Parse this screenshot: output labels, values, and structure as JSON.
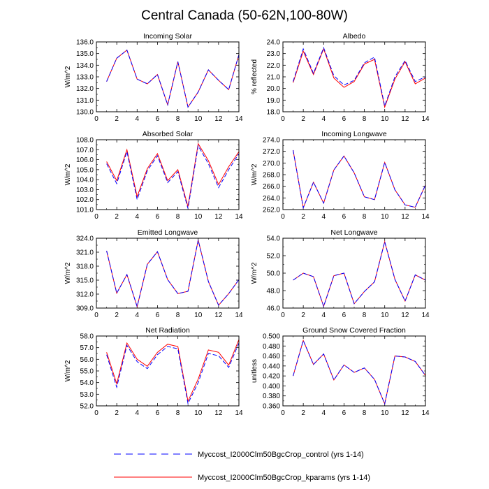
{
  "figure": {
    "title": "Central Canada (50-62N,100-80W)",
    "legend_position": "bottom-center"
  },
  "style": {
    "control_color": "#0000ff",
    "kparams_color": "#ff0000",
    "axis_color": "#000000"
  },
  "legend": [
    {
      "label": "Myccost_I2000Clm50BgcCrop_control (yrs 1-14)",
      "color": "#0000ff",
      "dash": "dashed"
    },
    {
      "label": "Myccost_I2000Clm50BgcCrop_kparams (yrs 1-14)",
      "color": "#ff0000",
      "dash": "solid"
    }
  ],
  "chart_data": [
    {
      "type": "line",
      "title": "Incoming Solar",
      "ylabel": "W/m^2",
      "x": [
        1,
        2,
        3,
        4,
        5,
        6,
        7,
        8,
        9,
        10,
        11,
        12,
        13,
        14
      ],
      "xlim": [
        0,
        14
      ],
      "xticks": [
        "0",
        "2",
        "4",
        "6",
        "8",
        "10",
        "12",
        "14"
      ],
      "ylim": [
        130.0,
        136.0
      ],
      "yticks": [
        "130.0",
        "131.0",
        "132.0",
        "133.0",
        "134.0",
        "135.0",
        "136.0"
      ],
      "series": [
        {
          "name": "Myccost_I2000Clm50BgcCrop_control (yrs 1-14)",
          "values": [
            132.6,
            134.6,
            135.3,
            132.8,
            132.4,
            133.2,
            130.6,
            134.3,
            130.4,
            131.7,
            133.6,
            132.7,
            131.9,
            134.9
          ]
        },
        {
          "name": "Myccost_I2000Clm50BgcCrop_kparams (yrs 1-14)",
          "values": [
            132.6,
            134.6,
            135.3,
            132.8,
            132.4,
            133.2,
            130.6,
            134.3,
            130.4,
            131.7,
            133.6,
            132.7,
            131.9,
            134.9
          ]
        }
      ]
    },
    {
      "type": "line",
      "title": "Albedo",
      "ylabel": "% reflected",
      "x": [
        1,
        2,
        3,
        4,
        5,
        6,
        7,
        8,
        9,
        10,
        11,
        12,
        13,
        14
      ],
      "xlim": [
        0,
        14
      ],
      "xticks": [
        "0",
        "2",
        "4",
        "6",
        "8",
        "10",
        "12",
        "14"
      ],
      "ylim": [
        18.0,
        24.0
      ],
      "yticks": [
        "18.0",
        "19.0",
        "20.0",
        "21.0",
        "22.0",
        "23.0",
        "24.0"
      ],
      "series": [
        {
          "name": "Myccost_I2000Clm50BgcCrop_control (yrs 1-14)",
          "values": [
            20.6,
            23.4,
            21.3,
            23.5,
            21.1,
            20.3,
            20.7,
            22.2,
            22.7,
            18.5,
            21.0,
            22.4,
            20.6,
            21.0
          ]
        },
        {
          "name": "Myccost_I2000Clm50BgcCrop_kparams (yrs 1-14)",
          "values": [
            20.5,
            23.2,
            21.2,
            23.4,
            20.9,
            20.1,
            20.6,
            22.1,
            22.5,
            18.4,
            20.8,
            22.3,
            20.4,
            20.9
          ]
        }
      ]
    },
    {
      "type": "line",
      "title": "Absorbed Solar",
      "ylabel": "W/m^2",
      "x": [
        1,
        2,
        3,
        4,
        5,
        6,
        7,
        8,
        9,
        10,
        11,
        12,
        13,
        14
      ],
      "xlim": [
        0,
        14
      ],
      "xticks": [
        "0",
        "2",
        "4",
        "6",
        "8",
        "10",
        "12",
        "14"
      ],
      "ylim": [
        101.0,
        108.0
      ],
      "yticks": [
        "101.0",
        "102.0",
        "103.0",
        "104.0",
        "105.0",
        "106.0",
        "107.0",
        "108.0"
      ],
      "series": [
        {
          "name": "Myccost_I2000Clm50BgcCrop_control (yrs 1-14)",
          "values": [
            105.6,
            103.6,
            106.8,
            102.0,
            104.9,
            106.4,
            103.7,
            104.8,
            101.1,
            107.4,
            105.6,
            103.2,
            105.0,
            106.6
          ]
        },
        {
          "name": "Myccost_I2000Clm50BgcCrop_kparams (yrs 1-14)",
          "values": [
            105.8,
            103.9,
            107.0,
            102.3,
            105.1,
            106.6,
            103.9,
            105.0,
            101.3,
            107.6,
            105.9,
            103.5,
            105.3,
            106.8
          ]
        }
      ]
    },
    {
      "type": "line",
      "title": "Incoming Longwave",
      "ylabel": "W/m^2",
      "x": [
        1,
        2,
        3,
        4,
        5,
        6,
        7,
        8,
        9,
        10,
        11,
        12,
        13,
        14
      ],
      "xlim": [
        0,
        14
      ],
      "xticks": [
        "0",
        "2",
        "4",
        "6",
        "8",
        "10",
        "12",
        "14"
      ],
      "ylim": [
        262.0,
        274.0
      ],
      "yticks": [
        "262.0",
        "264.0",
        "266.0",
        "268.0",
        "270.0",
        "272.0",
        "274.0"
      ],
      "series": [
        {
          "name": "Myccost_I2000Clm50BgcCrop_control (yrs 1-14)",
          "values": [
            272.2,
            262.3,
            266.7,
            263.1,
            268.8,
            271.2,
            268.3,
            264.2,
            263.7,
            270.1,
            265.4,
            262.8,
            262.4,
            266.2
          ]
        },
        {
          "name": "Myccost_I2000Clm50BgcCrop_kparams (yrs 1-14)",
          "values": [
            272.2,
            262.3,
            266.7,
            263.1,
            268.8,
            271.2,
            268.3,
            264.2,
            263.7,
            270.1,
            265.4,
            262.8,
            262.4,
            266.2
          ]
        }
      ]
    },
    {
      "type": "line",
      "title": "Emitted Longwave",
      "ylabel": "W/m^2",
      "x": [
        1,
        2,
        3,
        4,
        5,
        6,
        7,
        8,
        9,
        10,
        11,
        12,
        13,
        14
      ],
      "xlim": [
        0,
        14
      ],
      "xticks": [
        "0",
        "2",
        "4",
        "6",
        "8",
        "10",
        "12",
        "14"
      ],
      "ylim": [
        309.0,
        324.0
      ],
      "yticks": [
        "309.0",
        "312.0",
        "315.0",
        "318.0",
        "321.0",
        "324.0"
      ],
      "series": [
        {
          "name": "Myccost_I2000Clm50BgcCrop_control (yrs 1-14)",
          "values": [
            321.3,
            312.2,
            316.2,
            309.3,
            318.4,
            321.1,
            315.1,
            312.1,
            312.6,
            323.6,
            314.7,
            309.6,
            312.1,
            315.1
          ]
        },
        {
          "name": "Myccost_I2000Clm50BgcCrop_kparams (yrs 1-14)",
          "values": [
            321.3,
            312.2,
            316.2,
            309.3,
            318.4,
            321.1,
            315.1,
            312.1,
            312.6,
            323.6,
            314.7,
            309.6,
            312.1,
            315.1
          ]
        }
      ]
    },
    {
      "type": "line",
      "title": "Net Longwave",
      "ylabel": "W/m^2",
      "x": [
        1,
        2,
        3,
        4,
        5,
        6,
        7,
        8,
        9,
        10,
        11,
        12,
        13,
        14
      ],
      "xlim": [
        0,
        14
      ],
      "xticks": [
        "0",
        "2",
        "4",
        "6",
        "8",
        "10",
        "12",
        "14"
      ],
      "ylim": [
        46.0,
        54.0
      ],
      "yticks": [
        "46.0",
        "48.0",
        "50.0",
        "52.0",
        "54.0"
      ],
      "series": [
        {
          "name": "Myccost_I2000Clm50BgcCrop_control (yrs 1-14)",
          "values": [
            49.2,
            50.0,
            49.6,
            46.2,
            49.7,
            50.0,
            46.5,
            47.9,
            49.0,
            53.6,
            49.3,
            46.8,
            49.8,
            49.2
          ]
        },
        {
          "name": "Myccost_I2000Clm50BgcCrop_kparams (yrs 1-14)",
          "values": [
            49.2,
            50.0,
            49.6,
            46.2,
            49.7,
            50.0,
            46.5,
            47.9,
            49.0,
            53.6,
            49.3,
            46.8,
            49.8,
            49.2
          ]
        }
      ]
    },
    {
      "type": "line",
      "title": "Net Radiation",
      "ylabel": "W/m^2",
      "x": [
        1,
        2,
        3,
        4,
        5,
        6,
        7,
        8,
        9,
        10,
        11,
        12,
        13,
        14
      ],
      "xlim": [
        0,
        14
      ],
      "xticks": [
        "0",
        "2",
        "4",
        "6",
        "8",
        "10",
        "12",
        "14"
      ],
      "ylim": [
        52.0,
        58.0
      ],
      "yticks": [
        "52.0",
        "53.0",
        "54.0",
        "55.0",
        "56.0",
        "57.0",
        "58.0"
      ],
      "series": [
        {
          "name": "Myccost_I2000Clm50BgcCrop_control (yrs 1-14)",
          "values": [
            56.4,
            53.6,
            57.2,
            55.8,
            55.2,
            56.4,
            57.1,
            56.9,
            52.2,
            54.0,
            56.5,
            56.3,
            55.3,
            57.4
          ]
        },
        {
          "name": "Myccost_I2000Clm50BgcCrop_kparams (yrs 1-14)",
          "values": [
            56.6,
            53.9,
            57.4,
            56.0,
            55.4,
            56.6,
            57.3,
            57.1,
            52.4,
            54.3,
            56.8,
            56.6,
            55.5,
            57.7
          ]
        }
      ]
    },
    {
      "type": "line",
      "title": "Ground Snow Covered Fraction",
      "ylabel": "unitless",
      "x": [
        1,
        2,
        3,
        4,
        5,
        6,
        7,
        8,
        9,
        10,
        11,
        12,
        13,
        14
      ],
      "xlim": [
        0,
        14
      ],
      "xticks": [
        "0",
        "2",
        "4",
        "6",
        "8",
        "10",
        "12",
        "14"
      ],
      "ylim": [
        0.36,
        0.5
      ],
      "yticks": [
        "0.360",
        "0.380",
        "0.400",
        "0.420",
        "0.440",
        "0.460",
        "0.480",
        "0.500"
      ],
      "series": [
        {
          "name": "Myccost_I2000Clm50BgcCrop_control (yrs 1-14)",
          "values": [
            0.42,
            0.491,
            0.443,
            0.464,
            0.412,
            0.442,
            0.427,
            0.436,
            0.413,
            0.364,
            0.46,
            0.458,
            0.449,
            0.421
          ]
        },
        {
          "name": "Myccost_I2000Clm50BgcCrop_kparams (yrs 1-14)",
          "values": [
            0.42,
            0.491,
            0.443,
            0.464,
            0.412,
            0.442,
            0.427,
            0.436,
            0.413,
            0.364,
            0.46,
            0.458,
            0.449,
            0.421
          ]
        }
      ]
    }
  ]
}
